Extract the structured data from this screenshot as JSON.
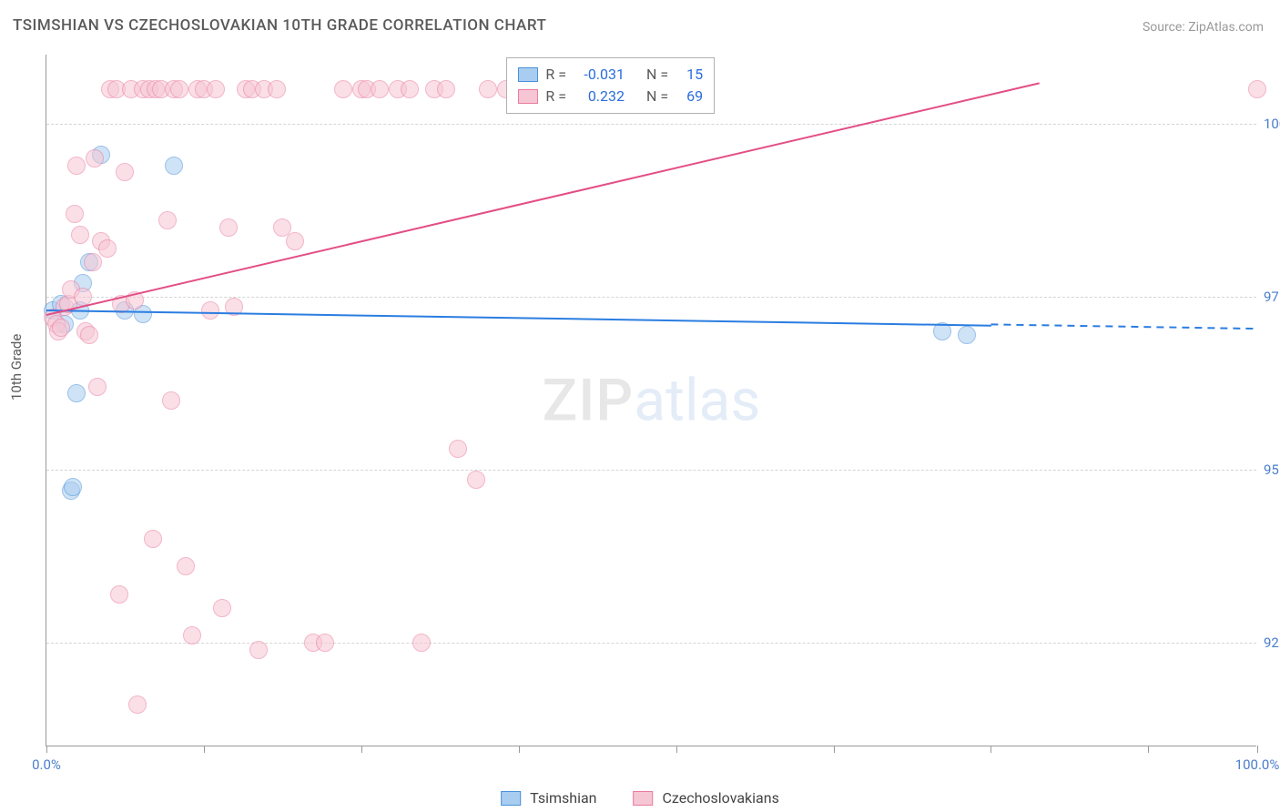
{
  "title": "TSIMSHIAN VS CZECHOSLOVAKIAN 10TH GRADE CORRELATION CHART",
  "source_label": "Source: ZipAtlas.com",
  "ylabel": "10th Grade",
  "watermark_zip": "ZIP",
  "watermark_atlas": "atlas",
  "chart": {
    "type": "scatter",
    "xlim": [
      0,
      100
    ],
    "ylim": [
      91.0,
      101.0
    ],
    "xtick_positions": [
      0,
      13,
      26,
      39,
      52,
      65,
      78,
      91,
      100
    ],
    "xtick_labels_shown": {
      "0": "0.0%",
      "100": "100.0%"
    },
    "ygrid_positions": [
      92.5,
      95.0,
      97.5,
      100.0
    ],
    "ytick_labels": {
      "92.5": "92.5%",
      "95.0": "95.0%",
      "97.5": "97.5%",
      "100.0": "100.0%"
    },
    "background_color": "#ffffff",
    "grid_color": "#d5d5d5",
    "axis_color": "#9a9a9a",
    "tick_label_color": "#4a7ecb",
    "label_fontsize": 15,
    "title_fontsize": 17,
    "title_color": "#5a5a5a",
    "marker_radius": 10,
    "marker_opacity": 0.55,
    "line_width": 2
  },
  "series": [
    {
      "name": "Tsimshian",
      "color_fill": "#a9cdf0",
      "color_stroke": "#4a90d9",
      "line_color": "#2b7de1",
      "R": "-0.031",
      "N": "15",
      "regression": {
        "x1": 0,
        "y1": 97.32,
        "x2": 78,
        "y2": 97.1,
        "dash_to_x": 100
      },
      "points": [
        [
          0.5,
          97.3
        ],
        [
          1.2,
          97.4
        ],
        [
          1.5,
          97.1
        ],
        [
          2.0,
          94.7
        ],
        [
          2.2,
          94.75
        ],
        [
          2.5,
          96.1
        ],
        [
          3.0,
          97.7
        ],
        [
          3.5,
          98.0
        ],
        [
          4.5,
          99.55
        ],
        [
          6.5,
          97.3
        ],
        [
          8.0,
          97.25
        ],
        [
          10.5,
          99.4
        ],
        [
          74.0,
          97.0
        ],
        [
          76.0,
          96.95
        ],
        [
          2.8,
          97.3
        ]
      ]
    },
    {
      "name": "Czechoslovakians",
      "color_fill": "#f6c6d4",
      "color_stroke": "#e97aa0",
      "line_color": "#e34e85",
      "R": "0.232",
      "N": "69",
      "regression": {
        "x1": 0,
        "y1": 97.25,
        "x2": 82,
        "y2": 100.6
      },
      "points": [
        [
          0.5,
          97.2
        ],
        [
          0.8,
          97.1
        ],
        [
          1.0,
          97.0
        ],
        [
          1.2,
          97.05
        ],
        [
          1.5,
          97.35
        ],
        [
          1.8,
          97.4
        ],
        [
          2.0,
          97.6
        ],
        [
          2.3,
          98.7
        ],
        [
          2.5,
          99.4
        ],
        [
          2.8,
          98.4
        ],
        [
          3.0,
          97.5
        ],
        [
          3.2,
          97.0
        ],
        [
          3.5,
          96.95
        ],
        [
          3.8,
          98.0
        ],
        [
          4.0,
          99.5
        ],
        [
          4.2,
          96.2
        ],
        [
          4.5,
          98.3
        ],
        [
          5.0,
          98.2
        ],
        [
          5.3,
          100.5
        ],
        [
          5.8,
          100.5
        ],
        [
          6.0,
          93.2
        ],
        [
          6.2,
          97.4
        ],
        [
          6.5,
          99.3
        ],
        [
          7.0,
          100.5
        ],
        [
          7.3,
          97.45
        ],
        [
          7.5,
          91.6
        ],
        [
          8.0,
          100.5
        ],
        [
          8.5,
          100.5
        ],
        [
          8.8,
          94.0
        ],
        [
          9.0,
          100.5
        ],
        [
          9.5,
          100.5
        ],
        [
          10.0,
          98.6
        ],
        [
          10.3,
          96.0
        ],
        [
          10.5,
          100.5
        ],
        [
          11.0,
          100.5
        ],
        [
          11.5,
          93.6
        ],
        [
          12.0,
          92.6
        ],
        [
          12.5,
          100.5
        ],
        [
          13.0,
          100.5
        ],
        [
          13.5,
          97.3
        ],
        [
          14.0,
          100.5
        ],
        [
          14.5,
          93.0
        ],
        [
          15.0,
          98.5
        ],
        [
          15.5,
          97.35
        ],
        [
          16.5,
          100.5
        ],
        [
          17.0,
          100.5
        ],
        [
          17.5,
          92.4
        ],
        [
          18.0,
          100.5
        ],
        [
          19.0,
          100.5
        ],
        [
          19.5,
          98.5
        ],
        [
          20.5,
          98.3
        ],
        [
          22.0,
          92.5
        ],
        [
          23.0,
          92.5
        ],
        [
          24.5,
          100.5
        ],
        [
          26.0,
          100.5
        ],
        [
          26.5,
          100.5
        ],
        [
          27.5,
          100.5
        ],
        [
          29.0,
          100.5
        ],
        [
          30.0,
          100.5
        ],
        [
          31.0,
          92.5
        ],
        [
          32.0,
          100.5
        ],
        [
          33.0,
          100.5
        ],
        [
          34.0,
          95.3
        ],
        [
          35.5,
          94.85
        ],
        [
          36.5,
          100.5
        ],
        [
          38.0,
          100.5
        ],
        [
          41.0,
          100.5
        ],
        [
          44.0,
          100.5
        ],
        [
          100.0,
          100.5
        ]
      ]
    }
  ],
  "legend_top": {
    "R_label": "R =",
    "N_label": "N ="
  },
  "legend_bottom": [
    {
      "label": "Tsimshian",
      "fill": "#a9cdf0",
      "stroke": "#4a90d9"
    },
    {
      "label": "Czechoslovakians",
      "fill": "#f6c6d4",
      "stroke": "#e97aa0"
    }
  ]
}
